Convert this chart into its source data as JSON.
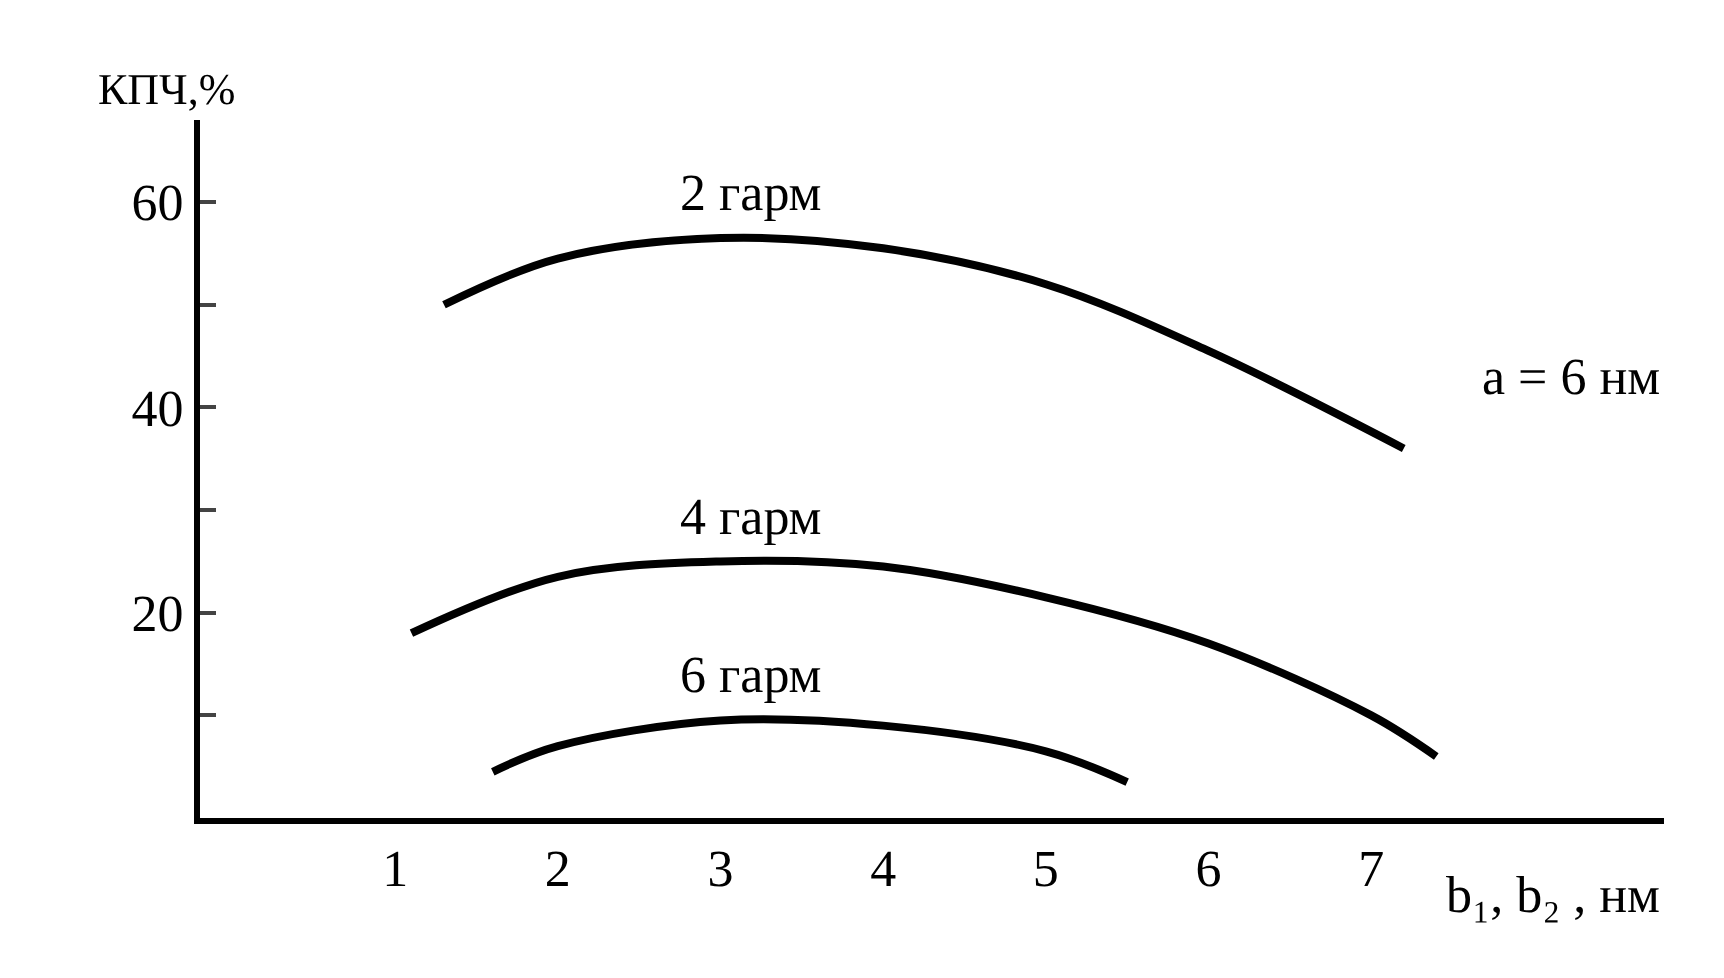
{
  "chart_data": {
    "type": "line",
    "ylabel": "КПЧ,%",
    "xlabel": "b₁, b₂ , нм",
    "xlim": [
      -0.2,
      8.8
    ],
    "xticks": [
      1,
      2,
      3,
      4,
      5,
      6,
      7
    ],
    "ylim": [
      0,
      68
    ],
    "yticks": [
      {
        "value": 10,
        "label": null
      },
      20,
      {
        "value": 30,
        "label": null
      },
      40,
      {
        "value": 50,
        "label": null
      },
      60
    ],
    "series": [
      {
        "name": "2 гарм",
        "color": "#000000",
        "x": [
          1.3,
          2,
          3,
          4,
          5,
          6,
          7.2
        ],
        "values": [
          50,
          54.5,
          56.5,
          55.5,
          52,
          45.5,
          36
        ]
      },
      {
        "name": "4 гарм",
        "color": "#000000",
        "x": [
          1.1,
          2,
          3,
          4,
          5,
          6,
          7,
          7.4
        ],
        "values": [
          18,
          23.5,
          25,
          24.5,
          21.5,
          17,
          10,
          6
        ]
      },
      {
        "name": "6 гарм",
        "color": "#000000",
        "x": [
          1.6,
          2,
          3,
          4,
          5,
          5.5
        ],
        "values": [
          4.5,
          7,
          9.5,
          9,
          6.5,
          3.5
        ]
      }
    ],
    "annotations": [
      "a = 6 нм"
    ],
    "legend": false,
    "marker": "none",
    "line_style": "solid"
  }
}
